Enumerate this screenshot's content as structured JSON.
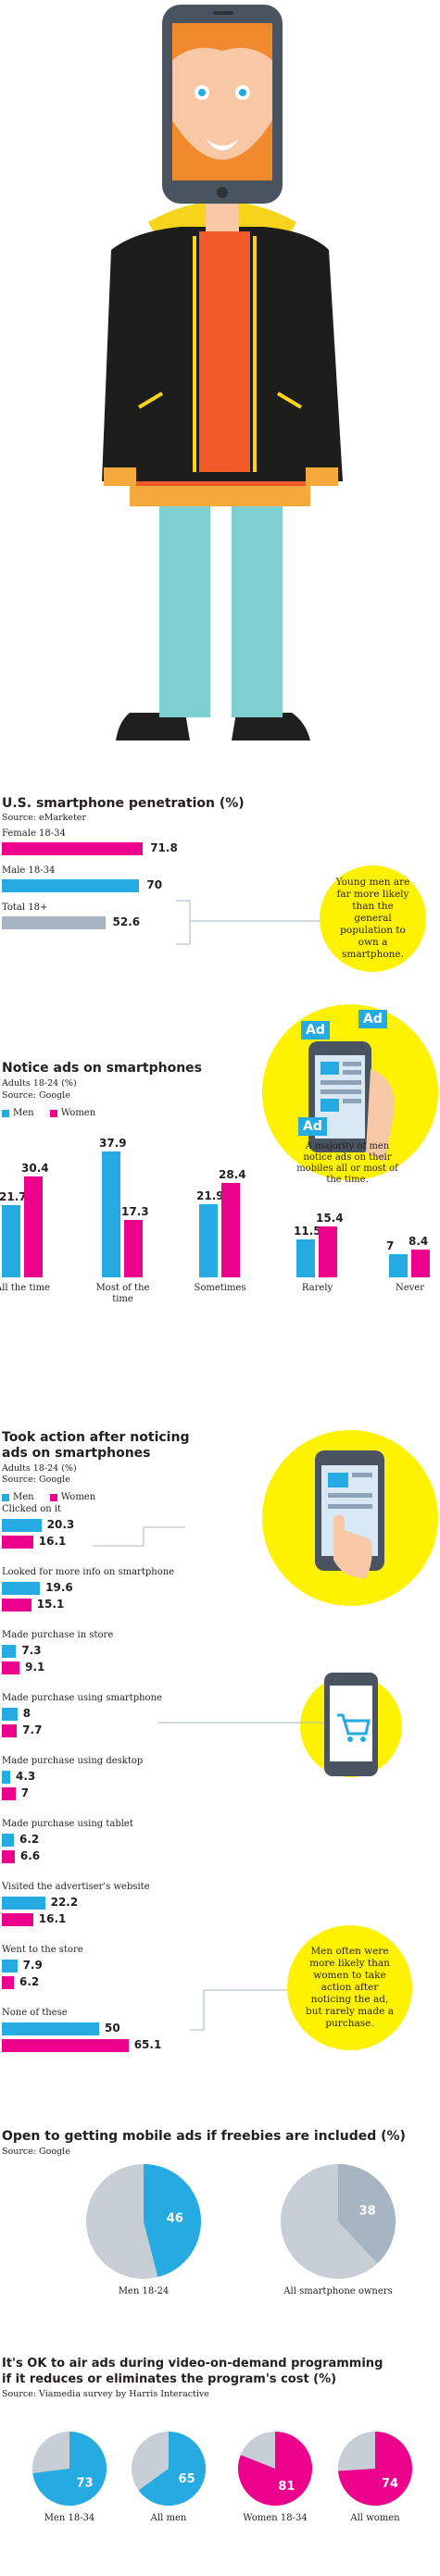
{
  "colors": {
    "men": "#25aae1",
    "women": "#ec008c",
    "total": "#a7b5c2",
    "yellow": "#fff200",
    "grey": "#c7ced6"
  },
  "penetration": {
    "title": "U.S. smartphone penetration (%)",
    "source": "Source: eMarketer",
    "chart_data": {
      "type": "bar",
      "title": "U.S. smartphone penetration (%)",
      "categories": [
        "Female 18-34",
        "Male 18-34",
        "Total 18+"
      ],
      "values": [
        71.8,
        70,
        52.6
      ],
      "value_labels": [
        "71.8",
        "70",
        "52.6"
      ],
      "xlim": [
        0,
        100
      ]
    },
    "note": "Young men are far more likely than the general population to own a smartphone."
  },
  "notice": {
    "title": "Notice ads on smartphones",
    "subtitle": "Adults 18-24 (%)",
    "source": "Source: Google",
    "legend": {
      "men": "Men",
      "women": "Women"
    },
    "note": "A majority of men notice ads on their mobiles all or most of the time.",
    "ad_labels": [
      "Ad",
      "Ad",
      "Ad"
    ],
    "chart_data": {
      "type": "bar",
      "title": "Notice ads on smartphones",
      "categories": [
        "All the time",
        "Most of the time",
        "Sometimes",
        "Rarely",
        "Never"
      ],
      "series": [
        {
          "name": "Men",
          "values": [
            21.7,
            37.9,
            21.9,
            11.5,
            7
          ],
          "labels": [
            "21.7",
            "37.9",
            "21.9",
            "11.5",
            "7"
          ]
        },
        {
          "name": "Women",
          "values": [
            30.4,
            17.3,
            28.4,
            15.4,
            8.4
          ],
          "labels": [
            "30.4",
            "17.3",
            "28.4",
            "15.4",
            "8.4"
          ]
        }
      ],
      "ylim": [
        0,
        40
      ]
    }
  },
  "action": {
    "title_line1": "Took action after noticing",
    "title_line2": "ads on smartphones",
    "subtitle": "Adults 18-24 (%)",
    "source": "Source: Google",
    "legend": {
      "men": "Men",
      "women": "Women"
    },
    "note": "Men often were more likely than women to take action after noticing the ad, but rarely made a purchase.",
    "chart_data": {
      "type": "bar",
      "title": "Took action after noticing ads on smartphones",
      "categories": [
        "Clicked on it",
        "Looked for more info on smartphone",
        "Made purchase in store",
        "Made purchase using smartphone",
        "Made purchase using desktop",
        "Made purchase using tablet",
        "Visited the advertiser's website",
        "Went to the store",
        "None of these"
      ],
      "series": [
        {
          "name": "Men",
          "values": [
            20.3,
            19.6,
            7.3,
            8,
            4.3,
            6.2,
            22.2,
            7.9,
            50
          ],
          "labels": [
            "20.3",
            "19.6",
            "7.3",
            "8",
            "4.3",
            "6.2",
            "22.2",
            "7.9",
            "50"
          ]
        },
        {
          "name": "Women",
          "values": [
            16.1,
            15.1,
            9.1,
            7.7,
            7,
            6.6,
            16.1,
            6.2,
            65.1
          ],
          "labels": [
            "16.1",
            "15.1",
            "9.1",
            "7.7",
            "7",
            "6.6",
            "16.1",
            "6.2",
            "65.1"
          ]
        }
      ],
      "xlim": [
        0,
        100
      ]
    }
  },
  "freebies": {
    "title": "Open to getting mobile ads if freebies are included (%)",
    "source": "Source: Google",
    "chart_data": [
      {
        "type": "pie",
        "category": "Men 18-24",
        "value": 46,
        "label": "46",
        "color": "#25aae1"
      },
      {
        "type": "pie",
        "category": "All smartphone owners",
        "value": 38,
        "label": "38",
        "color": "#a7b5c2"
      }
    ]
  },
  "vod": {
    "title_line1": "It's OK to air ads during video-on-demand programming",
    "title_line2": "if it reduces or eliminates the program's cost (%)",
    "source": "Source: Viamedia survey by Harris Interactive",
    "chart_data": [
      {
        "type": "pie",
        "category": "Men 18-34",
        "value": 73,
        "label": "73",
        "color": "#25aae1"
      },
      {
        "type": "pie",
        "category": "All men",
        "value": 65,
        "label": "65",
        "color": "#25aae1"
      },
      {
        "type": "pie",
        "category": "Women 18-34",
        "value": 81,
        "label": "81",
        "color": "#ec008c"
      },
      {
        "type": "pie",
        "category": "All women",
        "value": 74,
        "label": "74",
        "color": "#ec008c"
      }
    ]
  }
}
